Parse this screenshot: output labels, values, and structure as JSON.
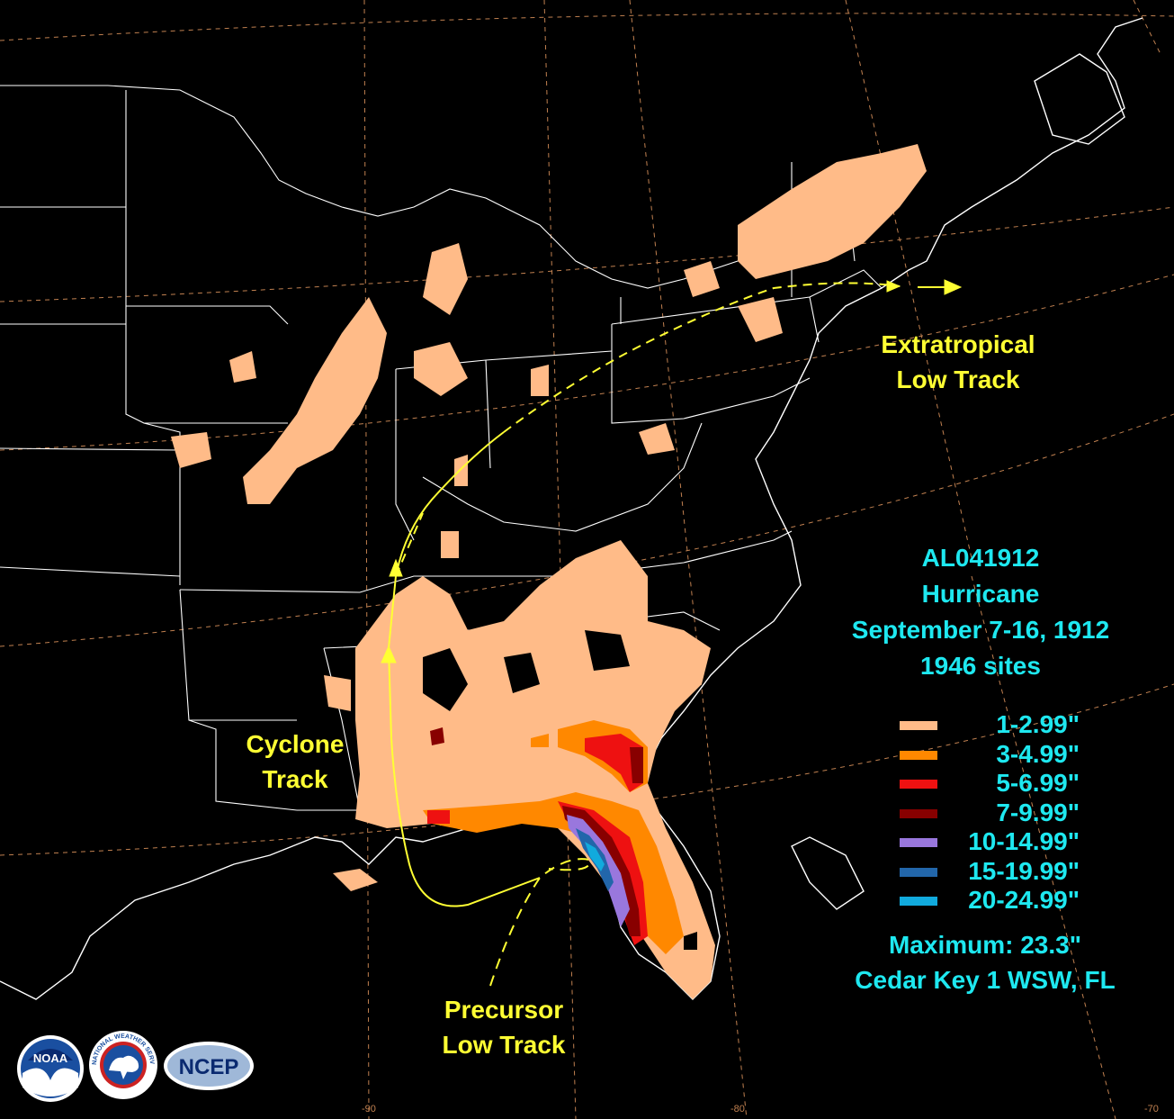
{
  "title": {
    "storm_id": "AL041912",
    "storm_type": "Hurricane",
    "dates": "September 7-16, 1912",
    "sites": "1946 sites"
  },
  "legend": [
    {
      "label": "1-2.99\"",
      "color": "#ffbb88"
    },
    {
      "label": "3-4.99\"",
      "color": "#ff8800"
    },
    {
      "label": "5-6.99\"",
      "color": "#ee1111"
    },
    {
      "label": "7-9.99\"",
      "color": "#880000"
    },
    {
      "label": "10-14.99\"",
      "color": "#9977dd"
    },
    {
      "label": "15-19.99\"",
      "color": "#2266aa"
    },
    {
      "label": "20-24.99\"",
      "color": "#11aadd"
    }
  ],
  "maximum": {
    "value_line": "Maximum: 23.3\"",
    "location": "Cedar Key 1 WSW, FL"
  },
  "tracks": {
    "extratropical": [
      "Extratropical",
      "Low Track"
    ],
    "cyclone": [
      "Cyclone",
      "Track"
    ],
    "precursor": [
      "Precursor",
      "Low Track"
    ]
  },
  "longitude_labels": [
    "-90",
    "-80",
    "-70"
  ],
  "logos": {
    "noaa": "NOAA",
    "nws": "NATIONAL WEATHER SERVICE",
    "ncep": "NCEP"
  },
  "colors": {
    "background": "#000000",
    "track": "#ffff33",
    "text_info": "#1ee8f0",
    "graticule": "#c08050",
    "boundaries": "#ffffff"
  }
}
